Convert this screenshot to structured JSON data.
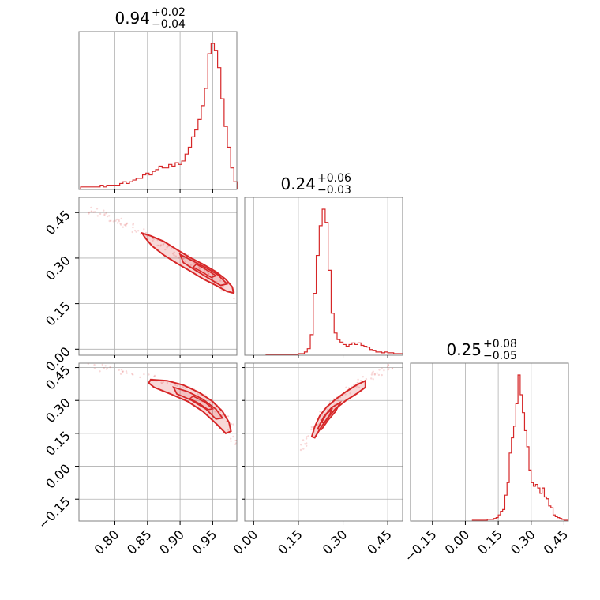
{
  "chart_data": {
    "type": "corner",
    "grid": true,
    "line_color": "#d62728",
    "parameters": [
      {
        "title": {
          "value": "0.94",
          "plus": "+0.02",
          "minus": "−0.04"
        },
        "range": [
          0.745,
          0.987
        ],
        "ticks": [
          0.8,
          0.85,
          0.9,
          0.95
        ],
        "tick_labels": [
          "0.80",
          "0.85",
          "0.90",
          "0.95"
        ],
        "hist": {
          "x": [
            0.75,
            0.755,
            0.76,
            0.765,
            0.77,
            0.775,
            0.78,
            0.785,
            0.79,
            0.795,
            0.8,
            0.805,
            0.81,
            0.815,
            0.82,
            0.825,
            0.83,
            0.835,
            0.84,
            0.845,
            0.85,
            0.855,
            0.86,
            0.865,
            0.87,
            0.875,
            0.88,
            0.885,
            0.89,
            0.895,
            0.9,
            0.905,
            0.91,
            0.915,
            0.92,
            0.925,
            0.93,
            0.935,
            0.94,
            0.945,
            0.95,
            0.955,
            0.96,
            0.965,
            0.97,
            0.975,
            0.98,
            0.985
          ],
          "counts": [
            1,
            1,
            1,
            1,
            1,
            1,
            2,
            1,
            2,
            2,
            2,
            2,
            3,
            4,
            3,
            4,
            5,
            6,
            6,
            8,
            9,
            8,
            10,
            11,
            13,
            12,
            12,
            14,
            13,
            15,
            14,
            16,
            20,
            24,
            30,
            34,
            40,
            48,
            58,
            78,
            84,
            80,
            70,
            52,
            36,
            24,
            12,
            4
          ]
        }
      },
      {
        "title": {
          "value": "0.24",
          "plus": "+0.06",
          "minus": "−0.03"
        },
        "range": [
          -0.03,
          0.5
        ],
        "ticks": [
          0.0,
          0.15,
          0.3,
          0.45
        ],
        "tick_labels": [
          "0.00",
          "0.15",
          "0.30",
          "0.45"
        ],
        "hist": {
          "x": [
            0.045,
            0.055,
            0.065,
            0.075,
            0.085,
            0.095,
            0.105,
            0.115,
            0.125,
            0.135,
            0.145,
            0.155,
            0.165,
            0.175,
            0.185,
            0.195,
            0.205,
            0.215,
            0.225,
            0.235,
            0.245,
            0.255,
            0.265,
            0.275,
            0.285,
            0.295,
            0.305,
            0.315,
            0.325,
            0.335,
            0.345,
            0.355,
            0.365,
            0.375,
            0.385,
            0.395,
            0.405,
            0.415,
            0.425,
            0.435,
            0.445,
            0.455,
            0.465,
            0.475,
            0.485,
            0.495
          ],
          "counts": [
            0,
            0,
            0,
            0,
            0,
            0,
            0,
            0,
            0,
            0,
            0,
            1,
            1,
            3,
            7,
            24,
            74,
            120,
            156,
            176,
            160,
            102,
            50,
            26,
            18,
            15,
            12,
            10,
            12,
            14,
            12,
            14,
            11,
            10,
            9,
            6,
            5,
            3,
            3,
            2,
            3,
            2,
            2,
            1,
            1,
            1
          ]
        }
      },
      {
        "title": {
          "value": "0.25",
          "plus": "+0.08",
          "minus": "−0.05"
        },
        "range": [
          -0.25,
          0.47
        ],
        "ticks": [
          -0.15,
          0.0,
          0.15,
          0.3,
          0.45
        ],
        "tick_labels": [
          "−0.15",
          "0.00",
          "0.15",
          "0.30",
          "0.45"
        ],
        "hist": {
          "x": [
            0.035,
            0.045,
            0.055,
            0.065,
            0.075,
            0.085,
            0.095,
            0.105,
            0.115,
            0.125,
            0.135,
            0.145,
            0.155,
            0.165,
            0.175,
            0.185,
            0.195,
            0.205,
            0.215,
            0.225,
            0.235,
            0.245,
            0.255,
            0.265,
            0.275,
            0.285,
            0.295,
            0.305,
            0.315,
            0.325,
            0.335,
            0.345,
            0.355,
            0.365,
            0.375,
            0.385,
            0.395,
            0.405,
            0.415,
            0.425,
            0.435,
            0.445,
            0.455,
            0.465
          ],
          "counts": [
            0,
            0,
            0,
            0,
            0,
            0,
            0,
            1,
            1,
            1,
            2,
            3,
            6,
            10,
            12,
            28,
            42,
            75,
            92,
            105,
            130,
            162,
            140,
            120,
            100,
            82,
            56,
            42,
            38,
            40,
            36,
            30,
            36,
            26,
            24,
            16,
            14,
            6,
            4,
            3,
            2,
            1,
            0,
            0
          ]
        }
      }
    ],
    "pairs": [
      {
        "x_param": 0,
        "y_param": 1,
        "y_range": [
          -0.02,
          0.5
        ],
        "y_ticks": [
          0.0,
          0.15,
          0.3,
          0.45
        ],
        "y_tick_labels": [
          "0.00",
          "0.15",
          "0.30",
          "0.45"
        ],
        "ridge": [
          [
            0.76,
            0.46
          ],
          [
            0.78,
            0.445
          ],
          [
            0.8,
            0.425
          ],
          [
            0.82,
            0.405
          ],
          [
            0.84,
            0.385
          ],
          [
            0.86,
            0.36
          ],
          [
            0.88,
            0.335
          ],
          [
            0.9,
            0.31
          ],
          [
            0.92,
            0.28
          ],
          [
            0.94,
            0.255
          ],
          [
            0.96,
            0.225
          ],
          [
            0.98,
            0.175
          ]
        ],
        "contour_outer": [
          [
            0.842,
            0.382
          ],
          [
            0.855,
            0.373
          ],
          [
            0.875,
            0.355
          ],
          [
            0.895,
            0.328
          ],
          [
            0.915,
            0.302
          ],
          [
            0.935,
            0.28
          ],
          [
            0.955,
            0.255
          ],
          [
            0.97,
            0.23
          ],
          [
            0.98,
            0.205
          ],
          [
            0.982,
            0.185
          ],
          [
            0.972,
            0.19
          ],
          [
            0.955,
            0.21
          ],
          [
            0.935,
            0.232
          ],
          [
            0.915,
            0.258
          ],
          [
            0.895,
            0.283
          ],
          [
            0.875,
            0.31
          ],
          [
            0.857,
            0.34
          ],
          [
            0.846,
            0.368
          ]
        ],
        "contour_mid": [
          [
            0.9,
            0.312
          ],
          [
            0.92,
            0.29
          ],
          [
            0.94,
            0.268
          ],
          [
            0.958,
            0.245
          ],
          [
            0.972,
            0.215
          ],
          [
            0.962,
            0.21
          ],
          [
            0.945,
            0.232
          ],
          [
            0.925,
            0.258
          ],
          [
            0.905,
            0.285
          ]
        ],
        "contour_inner": [
          [
            0.925,
            0.28
          ],
          [
            0.94,
            0.262
          ],
          [
            0.955,
            0.242
          ],
          [
            0.948,
            0.236
          ],
          [
            0.933,
            0.255
          ],
          [
            0.92,
            0.27
          ]
        ]
      },
      {
        "x_param": 0,
        "y_param": 2,
        "y_range": [
          -0.25,
          0.47
        ],
        "y_ticks": [
          -0.15,
          0.0,
          0.15,
          0.3,
          0.45
        ],
        "y_tick_labels": [
          "−0.15",
          "0.00",
          "0.15",
          "0.30",
          "0.45"
        ],
        "ridge": [
          [
            0.76,
            0.455
          ],
          [
            0.8,
            0.44
          ],
          [
            0.84,
            0.415
          ],
          [
            0.88,
            0.385
          ],
          [
            0.92,
            0.34
          ],
          [
            0.95,
            0.285
          ],
          [
            0.975,
            0.2
          ],
          [
            0.985,
            0.1
          ]
        ],
        "contour_outer": [
          [
            0.855,
            0.395
          ],
          [
            0.88,
            0.39
          ],
          [
            0.905,
            0.37
          ],
          [
            0.93,
            0.335
          ],
          [
            0.95,
            0.295
          ],
          [
            0.965,
            0.25
          ],
          [
            0.975,
            0.2
          ],
          [
            0.978,
            0.16
          ],
          [
            0.97,
            0.15
          ],
          [
            0.955,
            0.195
          ],
          [
            0.935,
            0.25
          ],
          [
            0.912,
            0.295
          ],
          [
            0.885,
            0.33
          ],
          [
            0.86,
            0.36
          ],
          [
            0.852,
            0.38
          ]
        ],
        "contour_mid": [
          [
            0.89,
            0.36
          ],
          [
            0.912,
            0.34
          ],
          [
            0.935,
            0.305
          ],
          [
            0.955,
            0.26
          ],
          [
            0.965,
            0.22
          ],
          [
            0.955,
            0.215
          ],
          [
            0.94,
            0.26
          ],
          [
            0.918,
            0.3
          ],
          [
            0.895,
            0.33
          ]
        ],
        "contour_inner": [
          [
            0.92,
            0.32
          ],
          [
            0.938,
            0.292
          ],
          [
            0.95,
            0.262
          ],
          [
            0.943,
            0.258
          ],
          [
            0.93,
            0.285
          ],
          [
            0.915,
            0.308
          ]
        ]
      },
      {
        "x_param": 1,
        "y_param": 2,
        "y_range": [
          -0.25,
          0.47
        ],
        "y_ticks": [
          -0.15,
          0.0,
          0.15,
          0.3,
          0.45
        ],
        "y_tick_labels": [
          "−0.15",
          "0.00",
          "0.15",
          "0.30",
          "0.45"
        ],
        "ridge": [
          [
            0.16,
            0.08
          ],
          [
            0.19,
            0.14
          ],
          [
            0.22,
            0.21
          ],
          [
            0.26,
            0.28
          ],
          [
            0.3,
            0.33
          ],
          [
            0.34,
            0.37
          ],
          [
            0.38,
            0.4
          ],
          [
            0.42,
            0.43
          ],
          [
            0.47,
            0.45
          ]
        ],
        "contour_outer": [
          [
            0.195,
            0.135
          ],
          [
            0.205,
            0.18
          ],
          [
            0.222,
            0.23
          ],
          [
            0.245,
            0.27
          ],
          [
            0.275,
            0.305
          ],
          [
            0.31,
            0.34
          ],
          [
            0.345,
            0.37
          ],
          [
            0.375,
            0.39
          ],
          [
            0.375,
            0.36
          ],
          [
            0.345,
            0.33
          ],
          [
            0.31,
            0.3
          ],
          [
            0.275,
            0.262
          ],
          [
            0.248,
            0.22
          ],
          [
            0.225,
            0.175
          ],
          [
            0.205,
            0.13
          ]
        ],
        "contour_mid": [
          [
            0.215,
            0.17
          ],
          [
            0.235,
            0.225
          ],
          [
            0.262,
            0.268
          ],
          [
            0.29,
            0.29
          ],
          [
            0.275,
            0.25
          ],
          [
            0.25,
            0.21
          ],
          [
            0.228,
            0.168
          ]
        ],
        "contour_inner": [
          [
            0.228,
            0.2
          ],
          [
            0.245,
            0.24
          ],
          [
            0.262,
            0.258
          ],
          [
            0.252,
            0.225
          ],
          [
            0.238,
            0.198
          ]
        ]
      }
    ]
  }
}
